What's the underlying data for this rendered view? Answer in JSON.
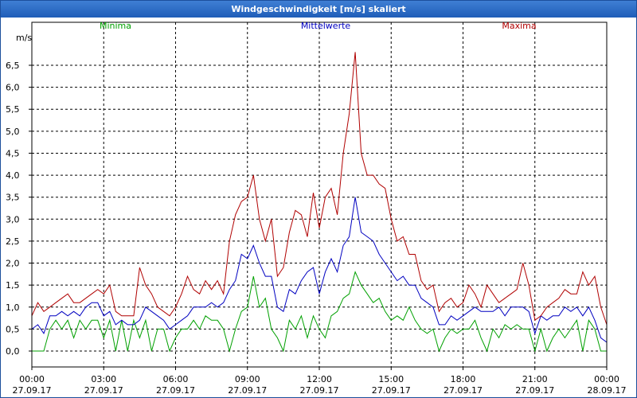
{
  "window": {
    "title": "Windgeschwindigkeit [m/s] skaliert"
  },
  "chart_data": {
    "type": "line",
    "title": "Windgeschwindigkeit [m/s] skaliert",
    "ylabel": "m/s",
    "xlabel": "",
    "ylim": [
      0,
      6.5
    ],
    "y_ticks": [
      "0,0",
      "0,5",
      "1,0",
      "1,5",
      "2,0",
      "2,5",
      "3,0",
      "3,5",
      "4,0",
      "4,5",
      "5,0",
      "5,5",
      "6,0",
      "6,5"
    ],
    "x_ticks": [
      {
        "time": "00:00",
        "date": "27.09.17"
      },
      {
        "time": "03:00",
        "date": "27.09.17"
      },
      {
        "time": "06:00",
        "date": "27.09.17"
      },
      {
        "time": "09:00",
        "date": "27.09.17"
      },
      {
        "time": "12:00",
        "date": "27.09.17"
      },
      {
        "time": "15:00",
        "date": "27.09.17"
      },
      {
        "time": "18:00",
        "date": "27.09.17"
      },
      {
        "time": "21:00",
        "date": "27.09.17"
      },
      {
        "time": "00:00",
        "date": "28.09.17"
      }
    ],
    "x_range_hours": [
      0,
      24
    ],
    "grid": true,
    "legend_position": "top",
    "series": [
      {
        "name": "Minima",
        "color": "#00a000",
        "points": [
          [
            0,
            0.0
          ],
          [
            0.5,
            0.0
          ],
          [
            0.75,
            0.5
          ],
          [
            1.0,
            0.7
          ],
          [
            1.25,
            0.5
          ],
          [
            1.5,
            0.7
          ],
          [
            1.75,
            0.3
          ],
          [
            2.0,
            0.7
          ],
          [
            2.25,
            0.5
          ],
          [
            2.5,
            0.7
          ],
          [
            2.75,
            0.7
          ],
          [
            3.0,
            0.3
          ],
          [
            3.25,
            0.7
          ],
          [
            3.5,
            0.0
          ],
          [
            3.75,
            0.7
          ],
          [
            4.0,
            0.0
          ],
          [
            4.25,
            0.7
          ],
          [
            4.5,
            0.3
          ],
          [
            4.75,
            0.7
          ],
          [
            5.0,
            0.0
          ],
          [
            5.25,
            0.5
          ],
          [
            5.5,
            0.5
          ],
          [
            5.75,
            0.0
          ],
          [
            6.0,
            0.3
          ],
          [
            6.25,
            0.5
          ],
          [
            6.5,
            0.5
          ],
          [
            6.75,
            0.7
          ],
          [
            7.0,
            0.5
          ],
          [
            7.25,
            0.8
          ],
          [
            7.5,
            0.7
          ],
          [
            7.75,
            0.7
          ],
          [
            8.0,
            0.5
          ],
          [
            8.25,
            0.0
          ],
          [
            8.5,
            0.5
          ],
          [
            8.75,
            0.9
          ],
          [
            9.0,
            1.0
          ],
          [
            9.25,
            1.7
          ],
          [
            9.5,
            1.0
          ],
          [
            9.75,
            1.2
          ],
          [
            10.0,
            0.5
          ],
          [
            10.25,
            0.3
          ],
          [
            10.5,
            0.0
          ],
          [
            10.75,
            0.7
          ],
          [
            11.0,
            0.5
          ],
          [
            11.25,
            0.8
          ],
          [
            11.5,
            0.3
          ],
          [
            11.75,
            0.8
          ],
          [
            12.0,
            0.5
          ],
          [
            12.25,
            0.3
          ],
          [
            12.5,
            0.8
          ],
          [
            12.75,
            0.9
          ],
          [
            13.0,
            1.2
          ],
          [
            13.25,
            1.3
          ],
          [
            13.5,
            1.8
          ],
          [
            13.75,
            1.5
          ],
          [
            14.0,
            1.3
          ],
          [
            14.25,
            1.1
          ],
          [
            14.5,
            1.2
          ],
          [
            14.75,
            0.9
          ],
          [
            15.0,
            0.7
          ],
          [
            15.25,
            0.8
          ],
          [
            15.5,
            0.7
          ],
          [
            15.75,
            1.0
          ],
          [
            16.0,
            0.7
          ],
          [
            16.25,
            0.5
          ],
          [
            16.5,
            0.4
          ],
          [
            16.75,
            0.5
          ],
          [
            17.0,
            0.0
          ],
          [
            17.25,
            0.3
          ],
          [
            17.5,
            0.5
          ],
          [
            17.75,
            0.4
          ],
          [
            18.0,
            0.5
          ],
          [
            18.25,
            0.5
          ],
          [
            18.5,
            0.7
          ],
          [
            18.75,
            0.3
          ],
          [
            19.0,
            0.0
          ],
          [
            19.25,
            0.5
          ],
          [
            19.5,
            0.3
          ],
          [
            19.75,
            0.6
          ],
          [
            20.0,
            0.5
          ],
          [
            20.25,
            0.6
          ],
          [
            20.5,
            0.5
          ],
          [
            20.75,
            0.5
          ],
          [
            21.0,
            0.0
          ],
          [
            21.25,
            0.5
          ],
          [
            21.5,
            0.0
          ],
          [
            21.75,
            0.3
          ],
          [
            22.0,
            0.5
          ],
          [
            22.25,
            0.3
          ],
          [
            22.5,
            0.5
          ],
          [
            22.75,
            0.7
          ],
          [
            23.0,
            0.0
          ],
          [
            23.25,
            0.7
          ],
          [
            23.5,
            0.5
          ],
          [
            23.75,
            0.0
          ],
          [
            24.0,
            0.0
          ]
        ]
      },
      {
        "name": "Mittelwerte",
        "color": "#0000c0",
        "points": [
          [
            0,
            0.5
          ],
          [
            0.25,
            0.6
          ],
          [
            0.5,
            0.4
          ],
          [
            0.75,
            0.8
          ],
          [
            1.0,
            0.8
          ],
          [
            1.25,
            0.9
          ],
          [
            1.5,
            0.8
          ],
          [
            1.75,
            0.9
          ],
          [
            2.0,
            0.8
          ],
          [
            2.25,
            1.0
          ],
          [
            2.5,
            1.1
          ],
          [
            2.75,
            1.1
          ],
          [
            3.0,
            0.8
          ],
          [
            3.25,
            0.9
          ],
          [
            3.5,
            0.6
          ],
          [
            3.75,
            0.7
          ],
          [
            4.0,
            0.6
          ],
          [
            4.25,
            0.6
          ],
          [
            4.5,
            0.7
          ],
          [
            4.75,
            1.0
          ],
          [
            5.0,
            0.9
          ],
          [
            5.25,
            0.8
          ],
          [
            5.5,
            0.7
          ],
          [
            5.75,
            0.5
          ],
          [
            6.0,
            0.6
          ],
          [
            6.25,
            0.7
          ],
          [
            6.5,
            0.8
          ],
          [
            6.75,
            1.0
          ],
          [
            7.0,
            1.0
          ],
          [
            7.25,
            1.0
          ],
          [
            7.5,
            1.1
          ],
          [
            7.75,
            1.0
          ],
          [
            8.0,
            1.1
          ],
          [
            8.25,
            1.4
          ],
          [
            8.5,
            1.6
          ],
          [
            8.75,
            2.2
          ],
          [
            9.0,
            2.1
          ],
          [
            9.25,
            2.4
          ],
          [
            9.5,
            2.0
          ],
          [
            9.75,
            1.7
          ],
          [
            10.0,
            1.7
          ],
          [
            10.25,
            1.0
          ],
          [
            10.5,
            0.9
          ],
          [
            10.75,
            1.4
          ],
          [
            11.0,
            1.3
          ],
          [
            11.25,
            1.6
          ],
          [
            11.5,
            1.8
          ],
          [
            11.75,
            1.9
          ],
          [
            12.0,
            1.3
          ],
          [
            12.25,
            1.8
          ],
          [
            12.5,
            2.1
          ],
          [
            12.75,
            1.8
          ],
          [
            13.0,
            2.4
          ],
          [
            13.25,
            2.6
          ],
          [
            13.5,
            3.5
          ],
          [
            13.75,
            2.7
          ],
          [
            14.0,
            2.6
          ],
          [
            14.25,
            2.5
          ],
          [
            14.5,
            2.2
          ],
          [
            14.75,
            2.0
          ],
          [
            15.0,
            1.8
          ],
          [
            15.25,
            1.6
          ],
          [
            15.5,
            1.7
          ],
          [
            15.75,
            1.5
          ],
          [
            16.0,
            1.5
          ],
          [
            16.25,
            1.2
          ],
          [
            16.5,
            1.1
          ],
          [
            16.75,
            1.0
          ],
          [
            17.0,
            0.6
          ],
          [
            17.25,
            0.6
          ],
          [
            17.5,
            0.8
          ],
          [
            17.75,
            0.7
          ],
          [
            18.0,
            0.8
          ],
          [
            18.25,
            0.9
          ],
          [
            18.5,
            1.0
          ],
          [
            18.75,
            0.9
          ],
          [
            19.0,
            0.9
          ],
          [
            19.25,
            0.9
          ],
          [
            19.5,
            1.0
          ],
          [
            19.75,
            0.8
          ],
          [
            20.0,
            1.0
          ],
          [
            20.25,
            1.0
          ],
          [
            20.5,
            1.0
          ],
          [
            20.75,
            0.9
          ],
          [
            21.0,
            0.4
          ],
          [
            21.25,
            0.8
          ],
          [
            21.5,
            0.7
          ],
          [
            21.75,
            0.8
          ],
          [
            22.0,
            0.8
          ],
          [
            22.25,
            1.0
          ],
          [
            22.5,
            0.9
          ],
          [
            22.75,
            1.0
          ],
          [
            23.0,
            0.8
          ],
          [
            23.25,
            1.0
          ],
          [
            23.5,
            0.7
          ],
          [
            23.75,
            0.3
          ],
          [
            24.0,
            0.2
          ]
        ]
      },
      {
        "name": "Maxima",
        "color": "#b00000",
        "points": [
          [
            0,
            0.8
          ],
          [
            0.25,
            1.1
          ],
          [
            0.5,
            0.9
          ],
          [
            0.75,
            1.0
          ],
          [
            1.0,
            1.1
          ],
          [
            1.25,
            1.2
          ],
          [
            1.5,
            1.3
          ],
          [
            1.75,
            1.1
          ],
          [
            2.0,
            1.1
          ],
          [
            2.25,
            1.2
          ],
          [
            2.5,
            1.3
          ],
          [
            2.75,
            1.4
          ],
          [
            3.0,
            1.3
          ],
          [
            3.25,
            1.5
          ],
          [
            3.5,
            0.9
          ],
          [
            3.75,
            0.8
          ],
          [
            4.0,
            0.8
          ],
          [
            4.25,
            0.8
          ],
          [
            4.5,
            1.9
          ],
          [
            4.75,
            1.5
          ],
          [
            5.0,
            1.3
          ],
          [
            5.25,
            1.0
          ],
          [
            5.5,
            0.9
          ],
          [
            5.75,
            0.8
          ],
          [
            6.0,
            1.0
          ],
          [
            6.25,
            1.3
          ],
          [
            6.5,
            1.7
          ],
          [
            6.75,
            1.4
          ],
          [
            7.0,
            1.3
          ],
          [
            7.25,
            1.6
          ],
          [
            7.5,
            1.4
          ],
          [
            7.75,
            1.6
          ],
          [
            8.0,
            1.3
          ],
          [
            8.25,
            2.5
          ],
          [
            8.5,
            3.1
          ],
          [
            8.75,
            3.4
          ],
          [
            9.0,
            3.5
          ],
          [
            9.25,
            4.0
          ],
          [
            9.5,
            3.0
          ],
          [
            9.75,
            2.5
          ],
          [
            10.0,
            3.0
          ],
          [
            10.25,
            1.7
          ],
          [
            10.5,
            1.9
          ],
          [
            10.75,
            2.7
          ],
          [
            11.0,
            3.2
          ],
          [
            11.25,
            3.1
          ],
          [
            11.5,
            2.6
          ],
          [
            11.75,
            3.6
          ],
          [
            12.0,
            2.8
          ],
          [
            12.25,
            3.5
          ],
          [
            12.5,
            3.7
          ],
          [
            12.75,
            3.1
          ],
          [
            13.0,
            4.5
          ],
          [
            13.25,
            5.4
          ],
          [
            13.5,
            6.8
          ],
          [
            13.75,
            4.5
          ],
          [
            14.0,
            4.0
          ],
          [
            14.25,
            4.0
          ],
          [
            14.5,
            3.8
          ],
          [
            14.75,
            3.7
          ],
          [
            15.0,
            3.0
          ],
          [
            15.25,
            2.5
          ],
          [
            15.5,
            2.6
          ],
          [
            15.75,
            2.2
          ],
          [
            16.0,
            2.2
          ],
          [
            16.25,
            1.6
          ],
          [
            16.5,
            1.4
          ],
          [
            16.75,
            1.5
          ],
          [
            17.0,
            0.9
          ],
          [
            17.25,
            1.1
          ],
          [
            17.5,
            1.2
          ],
          [
            17.75,
            1.0
          ],
          [
            18.0,
            1.1
          ],
          [
            18.25,
            1.5
          ],
          [
            18.5,
            1.3
          ],
          [
            18.75,
            1.0
          ],
          [
            19.0,
            1.5
          ],
          [
            19.25,
            1.3
          ],
          [
            19.5,
            1.1
          ],
          [
            19.75,
            1.2
          ],
          [
            20.0,
            1.3
          ],
          [
            20.25,
            1.4
          ],
          [
            20.5,
            2.0
          ],
          [
            20.75,
            1.5
          ],
          [
            21.0,
            0.7
          ],
          [
            21.25,
            0.8
          ],
          [
            21.5,
            1.0
          ],
          [
            21.75,
            1.1
          ],
          [
            22.0,
            1.2
          ],
          [
            22.25,
            1.4
          ],
          [
            22.5,
            1.3
          ],
          [
            22.75,
            1.3
          ],
          [
            23.0,
            1.8
          ],
          [
            23.25,
            1.5
          ],
          [
            23.5,
            1.7
          ],
          [
            23.75,
            1.0
          ],
          [
            24.0,
            0.6
          ]
        ]
      }
    ]
  }
}
